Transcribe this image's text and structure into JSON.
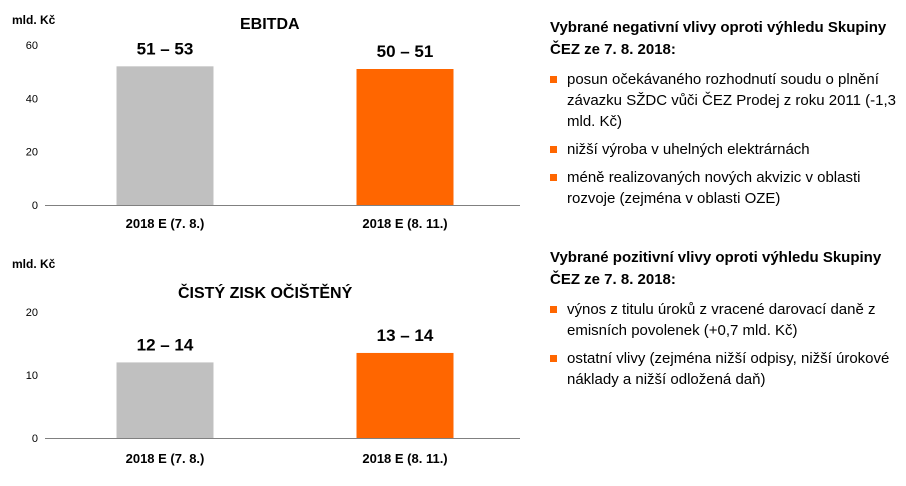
{
  "chart_data": [
    {
      "type": "bar",
      "title": "EBITDA",
      "ylabel": "mld. Kč",
      "ylim": [
        0,
        60
      ],
      "yticks": [
        0,
        20,
        40,
        60
      ],
      "categories": [
        "2018 E (7. 8.)",
        "2018 E (8. 11.)"
      ],
      "values": [
        52,
        51
      ],
      "data_labels": [
        "51 – 53",
        "50 – 51"
      ],
      "colors": [
        "#c0c0c0",
        "#ff6600"
      ],
      "grid": false
    },
    {
      "type": "bar",
      "title": "ČISTÝ ZISK OČIŠTĚNÝ",
      "ylabel": "mld. Kč",
      "ylim": [
        0,
        20
      ],
      "yticks": [
        0,
        10,
        20
      ],
      "categories": [
        "2018 E (7. 8.)",
        "2018 E (8. 11.)"
      ],
      "values": [
        12,
        13.5
      ],
      "data_labels": [
        "12 – 14",
        "13 – 14"
      ],
      "colors": [
        "#c0c0c0",
        "#ff6600"
      ],
      "grid": false
    }
  ],
  "negative": {
    "title": "Vybrané negativní vlivy oproti výhledu Skupiny ČEZ ze 7. 8. 2018:",
    "items": [
      "posun očekávaného rozhodnutí soudu o plnění závazku SŽDC vůči ČEZ Prodej z roku 2011 (-1,3 mld. Kč)",
      "nižší výroba v uhelných elektrárnách",
      "méně realizovaných nových akvizic v oblasti rozvoje (zejména v oblasti OZE)"
    ]
  },
  "positive": {
    "title": "Vybrané pozitivní vlivy oproti výhledu Skupiny ČEZ ze 7. 8. 2018:",
    "items": [
      "výnos z titulu úroků z vracené darovací daně z emisních povolenek (+0,7 mld. Kč)",
      "ostatní vlivy (zejména nižší odpisy, nižší úrokové náklady a nižší odložená daň)"
    ]
  }
}
